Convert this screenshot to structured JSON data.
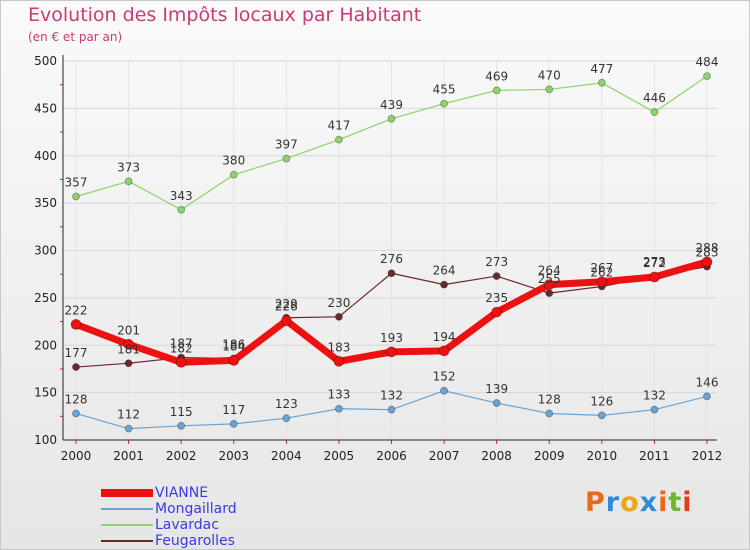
{
  "header": {
    "title": "Evolution des Impôts locaux par Habitant",
    "subtitle": "(en € et par an)"
  },
  "logo": {
    "text": "Proxiti",
    "colors": [
      "#e86a1a",
      "#2e8bd6",
      "#e8a81a",
      "#2e8bd6",
      "#e86a1a",
      "#6ab82e",
      "#e8381a"
    ]
  },
  "chart_data": {
    "type": "line",
    "title": "Evolution des Impôts locaux par Habitant",
    "subtitle": "(en € et par an)",
    "xlabel": "",
    "ylabel": "",
    "ylim": [
      100,
      500
    ],
    "yticks": [
      100,
      150,
      200,
      250,
      300,
      350,
      400,
      450,
      500
    ],
    "categories": [
      "2000",
      "2001",
      "2002",
      "2003",
      "2004",
      "2005",
      "2006",
      "2007",
      "2008",
      "2009",
      "2010",
      "2011",
      "2012"
    ],
    "legend_position": "bottom-left",
    "series": [
      {
        "name": "VIANNE",
        "color": "#ee1111",
        "values": [
          222,
          201,
          182,
          184,
          226,
          183,
          193,
          194,
          235,
          264,
          267,
          272,
          288
        ]
      },
      {
        "name": "Mongaillard",
        "color": "#6aa4d4",
        "values": [
          128,
          112,
          115,
          117,
          123,
          133,
          132,
          152,
          139,
          128,
          126,
          132,
          146
        ]
      },
      {
        "name": "Lavardac",
        "color": "#8cd46a",
        "values": [
          357,
          373,
          343,
          380,
          397,
          417,
          439,
          455,
          469,
          470,
          477,
          446,
          484
        ]
      },
      {
        "name": "Feugarolles",
        "color": "#6a2a2a",
        "values": [
          177,
          181,
          187,
          186,
          229,
          230,
          276,
          264,
          273,
          255,
          262,
          273,
          283
        ]
      }
    ]
  }
}
